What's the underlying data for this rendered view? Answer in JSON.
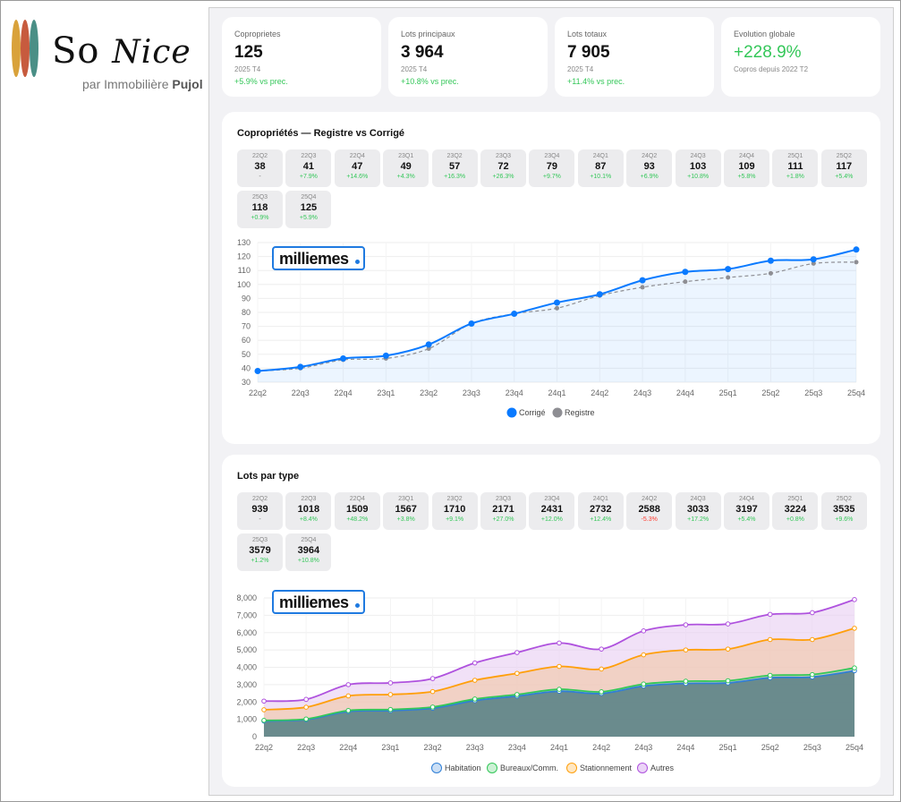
{
  "brand": {
    "name": "So Nice",
    "name_left": "So",
    "name_right": "Nice",
    "tagline_prefix": "par",
    "tagline_agency": "Immobilière",
    "tagline_strong": "Pujol",
    "colors": [
      "#d9a23b",
      "#c75b3e",
      "#4a8f86"
    ]
  },
  "kpis": [
    {
      "label": "Coproprietes",
      "value": "125",
      "sub": "2025 T4",
      "delta": "+5.9% vs prec."
    },
    {
      "label": "Lots principaux",
      "value": "3 964",
      "sub": "2025 T4",
      "delta": "+10.8% vs prec."
    },
    {
      "label": "Lots totaux",
      "value": "7 905",
      "sub": "2025 T4",
      "delta": "+11.4% vs prec."
    },
    {
      "label": "Evolution globale",
      "value": "+228.9%",
      "sub": "Copros depuis 2022 T2",
      "delta": ""
    }
  ],
  "watermark": {
    "text": "milliemes",
    "color": "#1f7ae0"
  },
  "copro": {
    "title": "Copropriétés — Registre vs Corrigé",
    "tiles": [
      {
        "q": "22Q2",
        "v": "38",
        "d": "-"
      },
      {
        "q": "22Q3",
        "v": "41",
        "d": "+7.9%"
      },
      {
        "q": "22Q4",
        "v": "47",
        "d": "+14.6%"
      },
      {
        "q": "23Q1",
        "v": "49",
        "d": "+4.3%"
      },
      {
        "q": "23Q2",
        "v": "57",
        "d": "+16.3%"
      },
      {
        "q": "23Q3",
        "v": "72",
        "d": "+26.3%"
      },
      {
        "q": "23Q4",
        "v": "79",
        "d": "+9.7%"
      },
      {
        "q": "24Q1",
        "v": "87",
        "d": "+10.1%"
      },
      {
        "q": "24Q2",
        "v": "93",
        "d": "+6.9%"
      },
      {
        "q": "24Q3",
        "v": "103",
        "d": "+10.8%"
      },
      {
        "q": "24Q4",
        "v": "109",
        "d": "+5.8%"
      },
      {
        "q": "25Q1",
        "v": "111",
        "d": "+1.8%"
      },
      {
        "q": "25Q2",
        "v": "117",
        "d": "+5.4%"
      },
      {
        "q": "25Q3",
        "v": "118",
        "d": "+0.9%"
      },
      {
        "q": "25Q4",
        "v": "125",
        "d": "+5.9%"
      }
    ]
  },
  "lots": {
    "title": "Lots par type",
    "tiles": [
      {
        "q": "22Q2",
        "v": "939",
        "d": "-"
      },
      {
        "q": "22Q3",
        "v": "1018",
        "d": "+8.4%"
      },
      {
        "q": "22Q4",
        "v": "1509",
        "d": "+48.2%"
      },
      {
        "q": "23Q1",
        "v": "1567",
        "d": "+3.8%"
      },
      {
        "q": "23Q2",
        "v": "1710",
        "d": "+9.1%"
      },
      {
        "q": "23Q3",
        "v": "2171",
        "d": "+27.0%"
      },
      {
        "q": "23Q4",
        "v": "2431",
        "d": "+12.0%"
      },
      {
        "q": "24Q1",
        "v": "2732",
        "d": "+12.4%"
      },
      {
        "q": "24Q2",
        "v": "2588",
        "d": "-5.3%"
      },
      {
        "q": "24Q3",
        "v": "3033",
        "d": "+17.2%"
      },
      {
        "q": "24Q4",
        "v": "3197",
        "d": "+5.4%"
      },
      {
        "q": "25Q1",
        "v": "3224",
        "d": "+0.8%"
      },
      {
        "q": "25Q2",
        "v": "3535",
        "d": "+9.6%"
      },
      {
        "q": "25Q3",
        "v": "3579",
        "d": "+1.2%"
      },
      {
        "q": "25Q4",
        "v": "3964",
        "d": "+10.8%"
      }
    ]
  },
  "chart_data": [
    {
      "type": "line",
      "title": "Copropriétés — Registre vs Corrigé",
      "categories": [
        "22q2",
        "22q3",
        "22q4",
        "23q1",
        "23q2",
        "23q3",
        "23q4",
        "24q1",
        "24q2",
        "24q3",
        "24q4",
        "25q1",
        "25q2",
        "25q3",
        "25q4"
      ],
      "ylim": [
        30,
        130
      ],
      "yticks": [
        30,
        40,
        50,
        60,
        70,
        80,
        90,
        100,
        110,
        120,
        130
      ],
      "series": [
        {
          "name": "Corrigé",
          "color": "#0a7aff",
          "values": [
            38,
            41,
            47,
            49,
            57,
            72,
            79,
            87,
            93,
            103,
            109,
            111,
            117,
            118,
            125
          ]
        },
        {
          "name": "Registre",
          "color": "#8e8e93",
          "values": [
            38,
            40,
            46,
            47,
            54,
            72,
            79,
            83,
            92,
            98,
            102,
            105,
            108,
            115,
            116
          ]
        }
      ],
      "legend": "bottom"
    },
    {
      "type": "area",
      "stacked": true,
      "categories": [
        "22q2",
        "22q3",
        "22q4",
        "23q1",
        "23q2",
        "23q3",
        "23q4",
        "24q1",
        "24q2",
        "24q3",
        "24q4",
        "25q1",
        "25q2",
        "25q3",
        "25q4"
      ],
      "ylim": [
        0,
        8000
      ],
      "yticks": [
        0,
        1000,
        2000,
        3000,
        4000,
        5000,
        6000,
        7000,
        8000
      ],
      "ytick_labels": [
        "0",
        "1,000",
        "2,000",
        "3,000",
        "4,000",
        "5,000",
        "6,000",
        "7,000",
        "8,000"
      ],
      "series": [
        {
          "name": "Habitation",
          "color": "#2f7fd6",
          "values": [
            900,
            980,
            1450,
            1500,
            1640,
            2080,
            2340,
            2620,
            2490,
            2920,
            3070,
            3100,
            3400,
            3440,
            3800
          ]
        },
        {
          "name": "Bureaux/Comm.",
          "color": "#34c759",
          "values": [
            939,
            1018,
            1509,
            1567,
            1710,
            2171,
            2431,
            2732,
            2588,
            3033,
            3197,
            3224,
            3535,
            3579,
            3964
          ]
        },
        {
          "name": "Stationnement",
          "color": "#ff9f0a",
          "values": [
            1550,
            1700,
            2350,
            2430,
            2600,
            3250,
            3650,
            4050,
            3900,
            4720,
            5000,
            5050,
            5600,
            5600,
            6250
          ]
        },
        {
          "name": "Autres",
          "color": "#af52de",
          "values": [
            2050,
            2150,
            3000,
            3100,
            3350,
            4250,
            4850,
            5400,
            5050,
            6100,
            6450,
            6500,
            7050,
            7150,
            7905
          ]
        }
      ],
      "legend": "bottom"
    }
  ]
}
